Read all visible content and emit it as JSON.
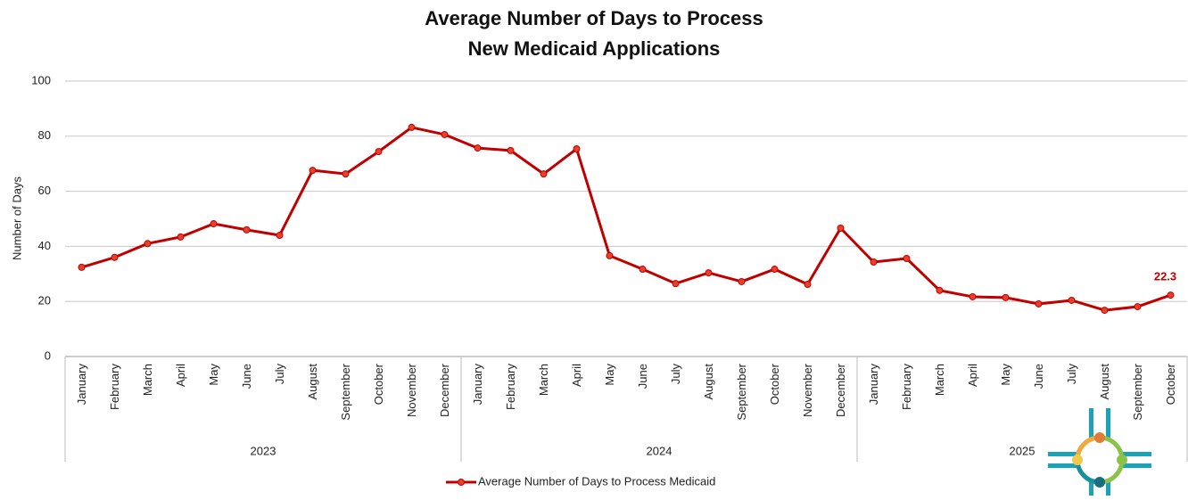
{
  "chart_data": {
    "type": "line",
    "title": [
      "Average Number of Days to Process",
      "New Medicaid Applications"
    ],
    "y_label": "Number of Days",
    "categories": [
      "January",
      "February",
      "March",
      "April",
      "May",
      "June",
      "July",
      "August",
      "September",
      "October",
      "November",
      "December",
      "January",
      "February",
      "March",
      "April",
      "May",
      "June",
      "July",
      "August",
      "September",
      "October",
      "November",
      "December",
      "January",
      "February",
      "March",
      "April",
      "May",
      "June",
      "July",
      "August",
      "September",
      "October"
    ],
    "groups": [
      {
        "name": "2023",
        "size": 12
      },
      {
        "name": "2024",
        "size": 12
      },
      {
        "name": "2025",
        "size": 10
      }
    ],
    "series": [
      {
        "name": "Average Number of Days to Process Medicaid",
        "color": "#c00000",
        "values": [
          32.4,
          36,
          41,
          43.4,
          48.2,
          46,
          44,
          67.6,
          66.3,
          74.4,
          83.2,
          80.6,
          75.7,
          74.8,
          66.3,
          75.4,
          36.6,
          31.7,
          26.5,
          30.4,
          27.2,
          31.7,
          26.2,
          46.6,
          34.3,
          35.6,
          24,
          21.7,
          21.4,
          19.1,
          20.4,
          16.8,
          18.1,
          22.3
        ],
        "value_labels": [
          null,
          null,
          null,
          null,
          null,
          null,
          null,
          null,
          null,
          null,
          null,
          null,
          null,
          null,
          null,
          null,
          null,
          null,
          null,
          null,
          null,
          null,
          null,
          null,
          null,
          null,
          null,
          null,
          null,
          null,
          null,
          null,
          null,
          "22.3"
        ]
      }
    ],
    "ylim": [
      0,
      100
    ],
    "yticks": [
      0,
      20,
      40,
      60,
      80,
      100
    ],
    "grid": true,
    "legend": "bottom"
  }
}
